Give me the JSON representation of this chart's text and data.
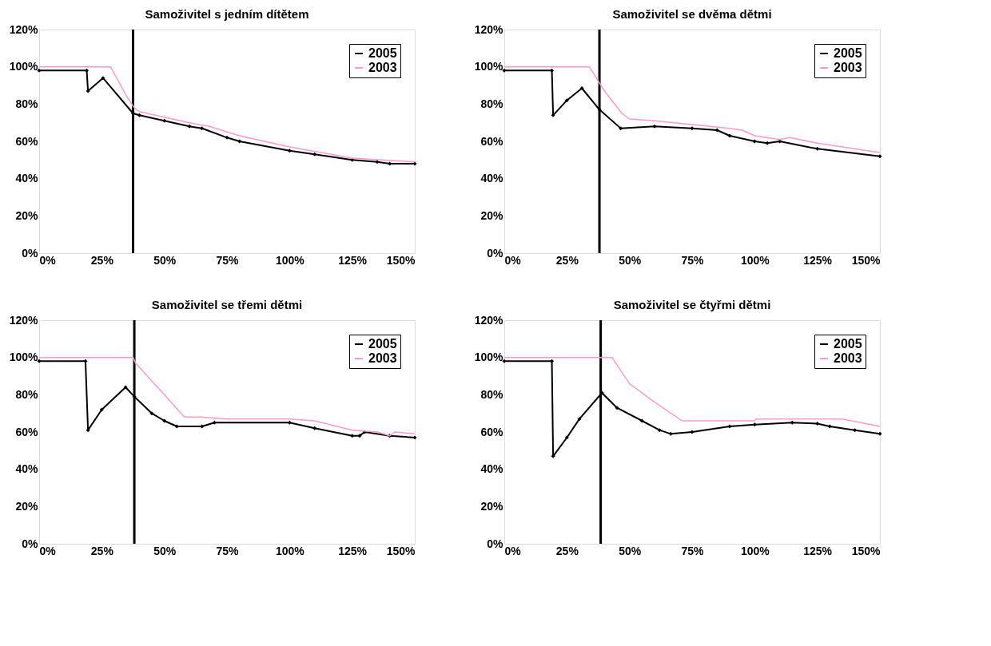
{
  "chart_data": [
    {
      "type": "line",
      "title": "Samoživitel s jedním dítětem",
      "xlim": [
        0,
        150
      ],
      "ylim": [
        0,
        120
      ],
      "xticks": [
        {
          "value": 0,
          "label": "0%"
        },
        {
          "value": 25,
          "label": "25%"
        },
        {
          "value": 50,
          "label": "50%"
        },
        {
          "value": 75,
          "label": "75%"
        },
        {
          "value": 100,
          "label": "100%"
        },
        {
          "value": 125,
          "label": "125%"
        },
        {
          "value": 150,
          "label": "150%"
        }
      ],
      "yticks": [
        {
          "value": 0,
          "label": "0%"
        },
        {
          "value": 20,
          "label": "20%"
        },
        {
          "value": 40,
          "label": "40%"
        },
        {
          "value": 60,
          "label": "60%"
        },
        {
          "value": 80,
          "label": "80%"
        },
        {
          "value": 100,
          "label": "100%"
        },
        {
          "value": 120,
          "label": "120%"
        }
      ],
      "grid": false,
      "legend": "top right",
      "ref_lines": [
        {
          "axis": "x",
          "value": 37.5,
          "color": "#000000"
        }
      ],
      "series": [
        {
          "name": "2005",
          "color": "#000000",
          "marker": "diamond",
          "x": [
            0,
            19,
            19.5,
            25.5,
            37.5,
            40,
            50,
            60,
            65,
            75,
            80,
            100,
            110,
            125,
            135,
            140,
            150
          ],
          "values": [
            98,
            98,
            87,
            94,
            75,
            74,
            71,
            68,
            67,
            62,
            60,
            55,
            53,
            50,
            49,
            48,
            48
          ]
        },
        {
          "name": "2003",
          "color": "#ff99cc",
          "marker": "none",
          "x": [
            0,
            28.5,
            35,
            38,
            40,
            50,
            60,
            68,
            75,
            80,
            100,
            125,
            150
          ],
          "values": [
            100,
            100,
            84,
            78,
            76,
            73,
            70,
            68,
            65,
            63,
            57,
            51,
            49
          ]
        }
      ]
    },
    {
      "type": "line",
      "title": "Samoživitel se dvěma dětmi",
      "xlim": [
        0,
        150
      ],
      "ylim": [
        0,
        120
      ],
      "xticks": [
        {
          "value": 0,
          "label": "0%"
        },
        {
          "value": 25,
          "label": "25%"
        },
        {
          "value": 50,
          "label": "50%"
        },
        {
          "value": 75,
          "label": "75%"
        },
        {
          "value": 100,
          "label": "100%"
        },
        {
          "value": 125,
          "label": "125%"
        },
        {
          "value": 150,
          "label": "150%"
        }
      ],
      "yticks": [
        {
          "value": 0,
          "label": "0%"
        },
        {
          "value": 20,
          "label": "20%"
        },
        {
          "value": 40,
          "label": "40%"
        },
        {
          "value": 60,
          "label": "60%"
        },
        {
          "value": 80,
          "label": "80%"
        },
        {
          "value": 100,
          "label": "100%"
        },
        {
          "value": 120,
          "label": "120%"
        }
      ],
      "grid": false,
      "legend": "top right",
      "ref_lines": [
        {
          "axis": "x",
          "value": 38,
          "color": "#000000"
        }
      ],
      "series": [
        {
          "name": "2005",
          "color": "#000000",
          "marker": "diamond",
          "x": [
            0,
            19,
            19.5,
            25,
            31,
            38,
            46.5,
            60,
            75,
            85,
            90,
            100,
            105,
            110,
            125,
            150
          ],
          "values": [
            98,
            98,
            74,
            82,
            88.5,
            77,
            67,
            68,
            67,
            66,
            63,
            60,
            59,
            60,
            56,
            52
          ]
        },
        {
          "name": "2003",
          "color": "#ff99cc",
          "marker": "none",
          "x": [
            0,
            34,
            40,
            47,
            50,
            60,
            75,
            90,
            95,
            100,
            110,
            114,
            125,
            150
          ],
          "values": [
            100,
            100,
            87,
            75,
            72,
            71,
            69,
            67,
            66,
            63,
            61,
            62,
            59,
            54
          ]
        }
      ]
    },
    {
      "type": "line",
      "title": "Samoživitel se třemi dětmi",
      "xlim": [
        0,
        150
      ],
      "ylim": [
        0,
        120
      ],
      "xticks": [
        {
          "value": 0,
          "label": "0%"
        },
        {
          "value": 25,
          "label": "25%"
        },
        {
          "value": 50,
          "label": "50%"
        },
        {
          "value": 75,
          "label": "75%"
        },
        {
          "value": 100,
          "label": "100%"
        },
        {
          "value": 125,
          "label": "125%"
        },
        {
          "value": 150,
          "label": "150%"
        }
      ],
      "yticks": [
        {
          "value": 0,
          "label": "0%"
        },
        {
          "value": 20,
          "label": "20%"
        },
        {
          "value": 40,
          "label": "40%"
        },
        {
          "value": 60,
          "label": "60%"
        },
        {
          "value": 80,
          "label": "80%"
        },
        {
          "value": 100,
          "label": "100%"
        },
        {
          "value": 120,
          "label": "120%"
        }
      ],
      "grid": false,
      "legend": "top right",
      "ref_lines": [
        {
          "axis": "x",
          "value": 38,
          "color": "#000000"
        }
      ],
      "series": [
        {
          "name": "2005",
          "color": "#000000",
          "marker": "diamond",
          "x": [
            0,
            18.5,
            19.5,
            25,
            34.5,
            38,
            45,
            50,
            55,
            65,
            70,
            100,
            110,
            125,
            128,
            130,
            140,
            150
          ],
          "values": [
            98,
            98,
            61,
            72,
            84,
            79,
            70,
            66,
            63,
            63,
            65,
            65,
            62,
            58,
            58,
            60,
            58,
            57
          ]
        },
        {
          "name": "2003",
          "color": "#ff99cc",
          "marker": "none",
          "x": [
            0,
            37.5,
            38.5,
            50,
            58,
            65,
            75,
            100,
            110,
            125,
            135,
            140,
            142,
            150
          ],
          "values": [
            100,
            100,
            97,
            80,
            68,
            68,
            67,
            67,
            66,
            61,
            60,
            58,
            60,
            59
          ]
        }
      ]
    },
    {
      "type": "line",
      "title": "Samoživitel se čtyřmi dětmi",
      "xlim": [
        0,
        150
      ],
      "ylim": [
        0,
        120
      ],
      "xticks": [
        {
          "value": 0,
          "label": "0%"
        },
        {
          "value": 25,
          "label": "25%"
        },
        {
          "value": 50,
          "label": "50%"
        },
        {
          "value": 75,
          "label": "75%"
        },
        {
          "value": 100,
          "label": "100%"
        },
        {
          "value": 125,
          "label": "125%"
        },
        {
          "value": 150,
          "label": "150%"
        }
      ],
      "yticks": [
        {
          "value": 0,
          "label": "0%"
        },
        {
          "value": 20,
          "label": "20%"
        },
        {
          "value": 40,
          "label": "40%"
        },
        {
          "value": 60,
          "label": "60%"
        },
        {
          "value": 80,
          "label": "80%"
        },
        {
          "value": 100,
          "label": "100%"
        },
        {
          "value": 120,
          "label": "120%"
        }
      ],
      "grid": false,
      "legend": "top right",
      "ref_lines": [
        {
          "axis": "x",
          "value": 38.5,
          "color": "#000000"
        }
      ],
      "series": [
        {
          "name": "2005",
          "color": "#000000",
          "marker": "diamond",
          "x": [
            0,
            19,
            19.5,
            25,
            30,
            39,
            45,
            55,
            62,
            66.5,
            75,
            90,
            100,
            115,
            125,
            130,
            140,
            150
          ],
          "values": [
            98,
            98,
            47,
            57,
            67,
            81,
            73,
            66,
            61,
            59,
            60,
            63,
            64,
            65,
            64.5,
            63,
            61,
            59
          ]
        },
        {
          "name": "2003",
          "color": "#ff99cc",
          "marker": "none",
          "x": [
            0,
            43,
            50,
            60,
            71,
            100,
            100.5,
            135,
            150
          ],
          "values": [
            100,
            100,
            86,
            76,
            66,
            66,
            67,
            67,
            63
          ]
        }
      ]
    }
  ]
}
